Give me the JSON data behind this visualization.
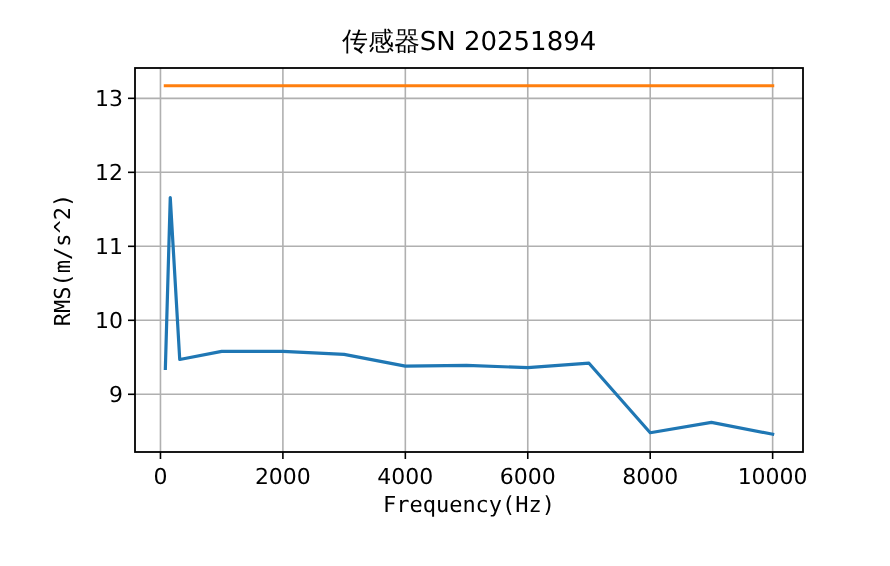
{
  "chart_data": {
    "type": "line",
    "title": "传感器SN 20251894",
    "xlabel": "Frequency(Hz)",
    "ylabel": "RMS(m/s^2)",
    "series": [
      {
        "color": "#1f77b4",
        "x": [
          80,
          160,
          315,
          1000,
          2000,
          3000,
          4000,
          5000,
          6000,
          7000,
          8000,
          9000,
          10000
        ],
        "values": [
          9.35,
          11.66,
          9.47,
          9.58,
          9.58,
          9.54,
          9.38,
          9.39,
          9.36,
          9.42,
          8.48,
          8.62,
          8.46
        ]
      },
      {
        "color": "#ff7f0e",
        "x": [
          80,
          10000
        ],
        "values": [
          13.17,
          13.17
        ]
      }
    ],
    "xlim": [
      -416,
      10496
    ],
    "ylim": [
      8.22,
      13.41
    ],
    "xticks": [
      0,
      2000,
      4000,
      6000,
      8000,
      10000
    ],
    "yticks": [
      9,
      10,
      11,
      12,
      13
    ],
    "grid": true
  }
}
